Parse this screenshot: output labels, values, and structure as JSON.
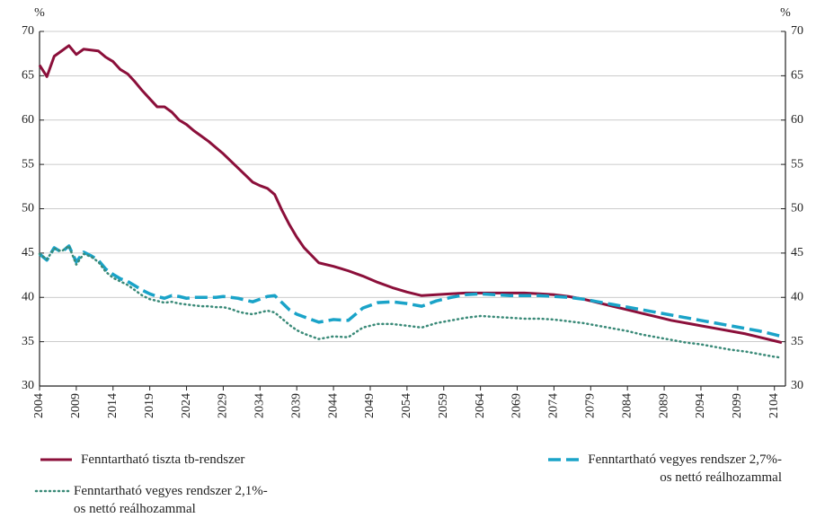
{
  "chart_data": {
    "type": "line",
    "y_label": "%",
    "y2_label": "%",
    "x": [
      2004,
      2005,
      2006,
      2007,
      2008,
      2009,
      2010,
      2011,
      2012,
      2013,
      2014,
      2015,
      2016,
      2017,
      2018,
      2019,
      2020,
      2021,
      2022,
      2023,
      2024,
      2025,
      2026,
      2027,
      2028,
      2029,
      2030,
      2031,
      2032,
      2033,
      2034,
      2035,
      2036,
      2037,
      2038,
      2039,
      2040,
      2042,
      2044,
      2046,
      2048,
      2050,
      2052,
      2054,
      2056,
      2058,
      2060,
      2062,
      2064,
      2066,
      2068,
      2070,
      2072,
      2074,
      2076,
      2078,
      2080,
      2082,
      2084,
      2086,
      2088,
      2090,
      2092,
      2094,
      2096,
      2098,
      2100,
      2102,
      2104,
      2105
    ],
    "series": [
      {
        "name": "Fenntartható tiszta tb-rendszer",
        "color": "#8b0f3a",
        "style": "solid",
        "values": [
          66.2,
          64.9,
          67.2,
          67.8,
          68.4,
          67.4,
          68.0,
          67.9,
          67.8,
          67.1,
          66.6,
          65.7,
          65.2,
          64.3,
          63.3,
          62.4,
          61.5,
          61.5,
          60.9,
          60.0,
          59.5,
          58.8,
          58.2,
          57.6,
          56.9,
          56.2,
          55.4,
          54.6,
          53.8,
          53.0,
          52.6,
          52.3,
          51.6,
          49.8,
          48.2,
          46.8,
          45.6,
          43.9,
          43.5,
          43.0,
          42.4,
          41.7,
          41.1,
          40.6,
          40.2,
          40.3,
          40.4,
          40.5,
          40.5,
          40.5,
          40.5,
          40.5,
          40.4,
          40.3,
          40.1,
          39.8,
          39.4,
          39.0,
          38.6,
          38.2,
          37.8,
          37.4,
          37.1,
          36.8,
          36.5,
          36.2,
          35.9,
          35.5,
          35.1,
          34.9
        ]
      },
      {
        "name": "Fenntartható vegyes rendszer 2,7%-os nettó reálhozammal",
        "color": "#1aa3c8",
        "style": "dashed",
        "values": [
          44.9,
          44.2,
          45.6,
          45.1,
          45.8,
          44.0,
          45.1,
          44.7,
          44.2,
          43.2,
          42.6,
          42.1,
          41.8,
          41.3,
          40.8,
          40.4,
          40.1,
          39.9,
          40.2,
          40.1,
          39.9,
          40.0,
          40.0,
          40.0,
          40.0,
          40.1,
          40.0,
          39.9,
          39.7,
          39.5,
          39.8,
          40.1,
          40.2,
          39.4,
          38.6,
          38.1,
          37.8,
          37.2,
          37.5,
          37.4,
          38.8,
          39.4,
          39.5,
          39.3,
          39.0,
          39.6,
          40.0,
          40.3,
          40.4,
          40.3,
          40.2,
          40.2,
          40.2,
          40.1,
          40.0,
          39.8,
          39.5,
          39.2,
          38.9,
          38.6,
          38.3,
          38.0,
          37.7,
          37.4,
          37.1,
          36.8,
          36.5,
          36.2,
          35.8,
          35.6
        ]
      },
      {
        "name": "Fenntartható vegyes rendszer 2,1%-os nettó reálhozammal",
        "color": "#3a8a78",
        "style": "dotted",
        "values": [
          44.9,
          44.3,
          45.5,
          45.2,
          45.8,
          43.7,
          44.9,
          44.6,
          44.0,
          42.9,
          42.2,
          41.8,
          41.4,
          40.8,
          40.2,
          39.8,
          39.6,
          39.4,
          39.5,
          39.3,
          39.2,
          39.1,
          39.0,
          39.0,
          38.9,
          38.9,
          38.7,
          38.4,
          38.2,
          38.1,
          38.3,
          38.5,
          38.3,
          37.6,
          36.9,
          36.3,
          35.9,
          35.3,
          35.6,
          35.5,
          36.6,
          37.0,
          37.0,
          36.8,
          36.6,
          37.1,
          37.4,
          37.7,
          37.9,
          37.8,
          37.7,
          37.6,
          37.6,
          37.5,
          37.3,
          37.1,
          36.8,
          36.5,
          36.2,
          35.8,
          35.5,
          35.2,
          34.9,
          34.7,
          34.4,
          34.1,
          33.9,
          33.6,
          33.3,
          33.2
        ]
      }
    ],
    "xlim": [
      2004,
      2105.5
    ],
    "xticks": [
      2004,
      2009,
      2014,
      2019,
      2024,
      2029,
      2034,
      2039,
      2044,
      2049,
      2054,
      2059,
      2064,
      2069,
      2074,
      2079,
      2084,
      2089,
      2094,
      2099,
      2104
    ],
    "ylim": [
      30,
      70
    ],
    "yticks": [
      30,
      35,
      40,
      45,
      50,
      55,
      60,
      65,
      70
    ],
    "y2lim": [
      30,
      70
    ],
    "y2ticks": [
      30,
      35,
      40,
      45,
      50,
      55,
      60,
      65,
      70
    ],
    "grid": true
  }
}
